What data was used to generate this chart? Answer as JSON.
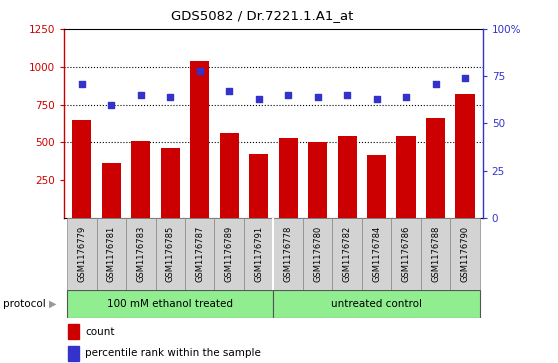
{
  "title": "GDS5082 / Dr.7221.1.A1_at",
  "samples": [
    "GSM1176779",
    "GSM1176781",
    "GSM1176783",
    "GSM1176785",
    "GSM1176787",
    "GSM1176789",
    "GSM1176791",
    "GSM1176778",
    "GSM1176780",
    "GSM1176782",
    "GSM1176784",
    "GSM1176786",
    "GSM1176788",
    "GSM1176790"
  ],
  "counts": [
    650,
    360,
    510,
    465,
    1040,
    560,
    420,
    530,
    500,
    545,
    415,
    540,
    660,
    820
  ],
  "percentiles": [
    71,
    60,
    65,
    64,
    78,
    67,
    63,
    65,
    64,
    65,
    63,
    64,
    71,
    74
  ],
  "group1_label": "100 mM ethanol treated",
  "group2_label": "untreated control",
  "group_color": "#90EE90",
  "bar_color": "#CC0000",
  "dot_color": "#3333CC",
  "left_ylim": [
    0,
    1250
  ],
  "left_yticks": [
    250,
    500,
    750,
    1000,
    1250
  ],
  "right_ylim": [
    0,
    100
  ],
  "right_yticks": [
    0,
    25,
    50,
    75,
    100
  ],
  "right_yticklabels": [
    "0",
    "25",
    "50",
    "75",
    "100%"
  ],
  "hlines": [
    500,
    750,
    1000
  ],
  "plot_bg": "#FFFFFF",
  "label_bg": "#D3D3D3"
}
